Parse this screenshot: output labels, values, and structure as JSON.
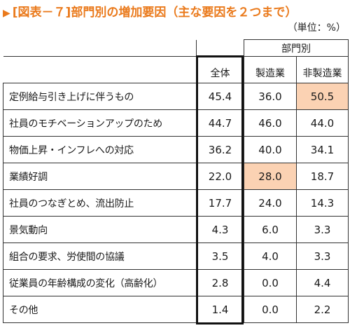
{
  "title": "[図表－７]部門別の増加要因（主な要因を２つまで）",
  "title_marker": "▶",
  "unit": "（単位：%）",
  "chart_data": {
    "type": "table",
    "group_header": "部門別",
    "columns": [
      "全体",
      "製造業",
      "非製造業"
    ],
    "rows": [
      {
        "label": "定例給与引き上げに伴うもの",
        "values": [
          "45.4",
          "36.0",
          "50.5"
        ]
      },
      {
        "label": "社員のモチベーションアップのため",
        "values": [
          "44.7",
          "46.0",
          "44.0"
        ]
      },
      {
        "label": "物価上昇・インフレへの対応",
        "values": [
          "36.2",
          "40.0",
          "34.1"
        ]
      },
      {
        "label": "業績好調",
        "values": [
          "22.0",
          "28.0",
          "18.7"
        ]
      },
      {
        "label": "社員のつなぎとめ、流出防止",
        "values": [
          "17.7",
          "24.0",
          "14.3"
        ]
      },
      {
        "label": "景気動向",
        "values": [
          "4.3",
          "6.0",
          "3.3"
        ]
      },
      {
        "label": "組合の要求、労使間の協議",
        "values": [
          "3.5",
          "4.0",
          "3.3"
        ]
      },
      {
        "label": "従業員の年齢構成の変化（高齢化）",
        "values": [
          "2.8",
          "0.0",
          "4.4"
        ]
      },
      {
        "label": "その他",
        "values": [
          "1.4",
          "0.0",
          "2.2"
        ]
      }
    ],
    "highlighted_cells": [
      {
        "row": 0,
        "col": 2
      },
      {
        "row": 3,
        "col": 1
      }
    ],
    "highlight_color": "#fbd2b3",
    "emphasized_column": 0
  }
}
